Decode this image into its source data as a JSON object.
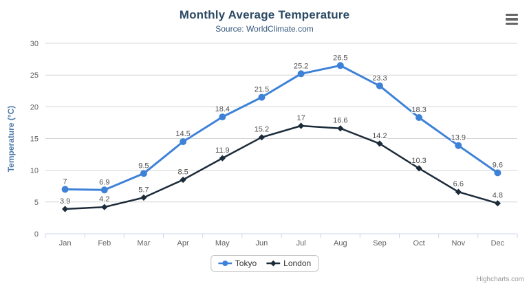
{
  "credits": {
    "label": "Highcharts.com"
  },
  "chart_data": {
    "type": "line",
    "title": "Monthly Average Temperature",
    "subtitle": "Source: WorldClimate.com",
    "categories": [
      "Jan",
      "Feb",
      "Mar",
      "Apr",
      "May",
      "Jun",
      "Jul",
      "Aug",
      "Sep",
      "Oct",
      "Nov",
      "Dec"
    ],
    "series": [
      {
        "name": "Tokyo",
        "color": "#3e82d8",
        "marker": "circle",
        "line_width": 3,
        "values": [
          7,
          6.9,
          9.5,
          14.5,
          18.4,
          21.5,
          25.2,
          26.5,
          23.3,
          18.3,
          13.9,
          9.6
        ]
      },
      {
        "name": "London",
        "color": "#1c2b3a",
        "marker": "diamond",
        "line_width": 2.5,
        "values": [
          3.9,
          4.2,
          5.7,
          8.5,
          11.9,
          15.2,
          17,
          16.6,
          14.2,
          10.3,
          6.6,
          4.8
        ]
      }
    ],
    "xlabel": "",
    "ylabel": "Temperature (°C)",
    "ylim": [
      0,
      30
    ],
    "ytick": 5,
    "grid": true,
    "legend_position": "bottom",
    "colors": {
      "grid": "#d4d4d4",
      "axis_line": "#ccd6eb",
      "tick": "#ccd6eb",
      "axis_label": "#606060",
      "data_label": "#4d4d4d",
      "y_title": "#4e79a8",
      "title": "#2c4a63",
      "subtitle": "#33567b"
    }
  }
}
